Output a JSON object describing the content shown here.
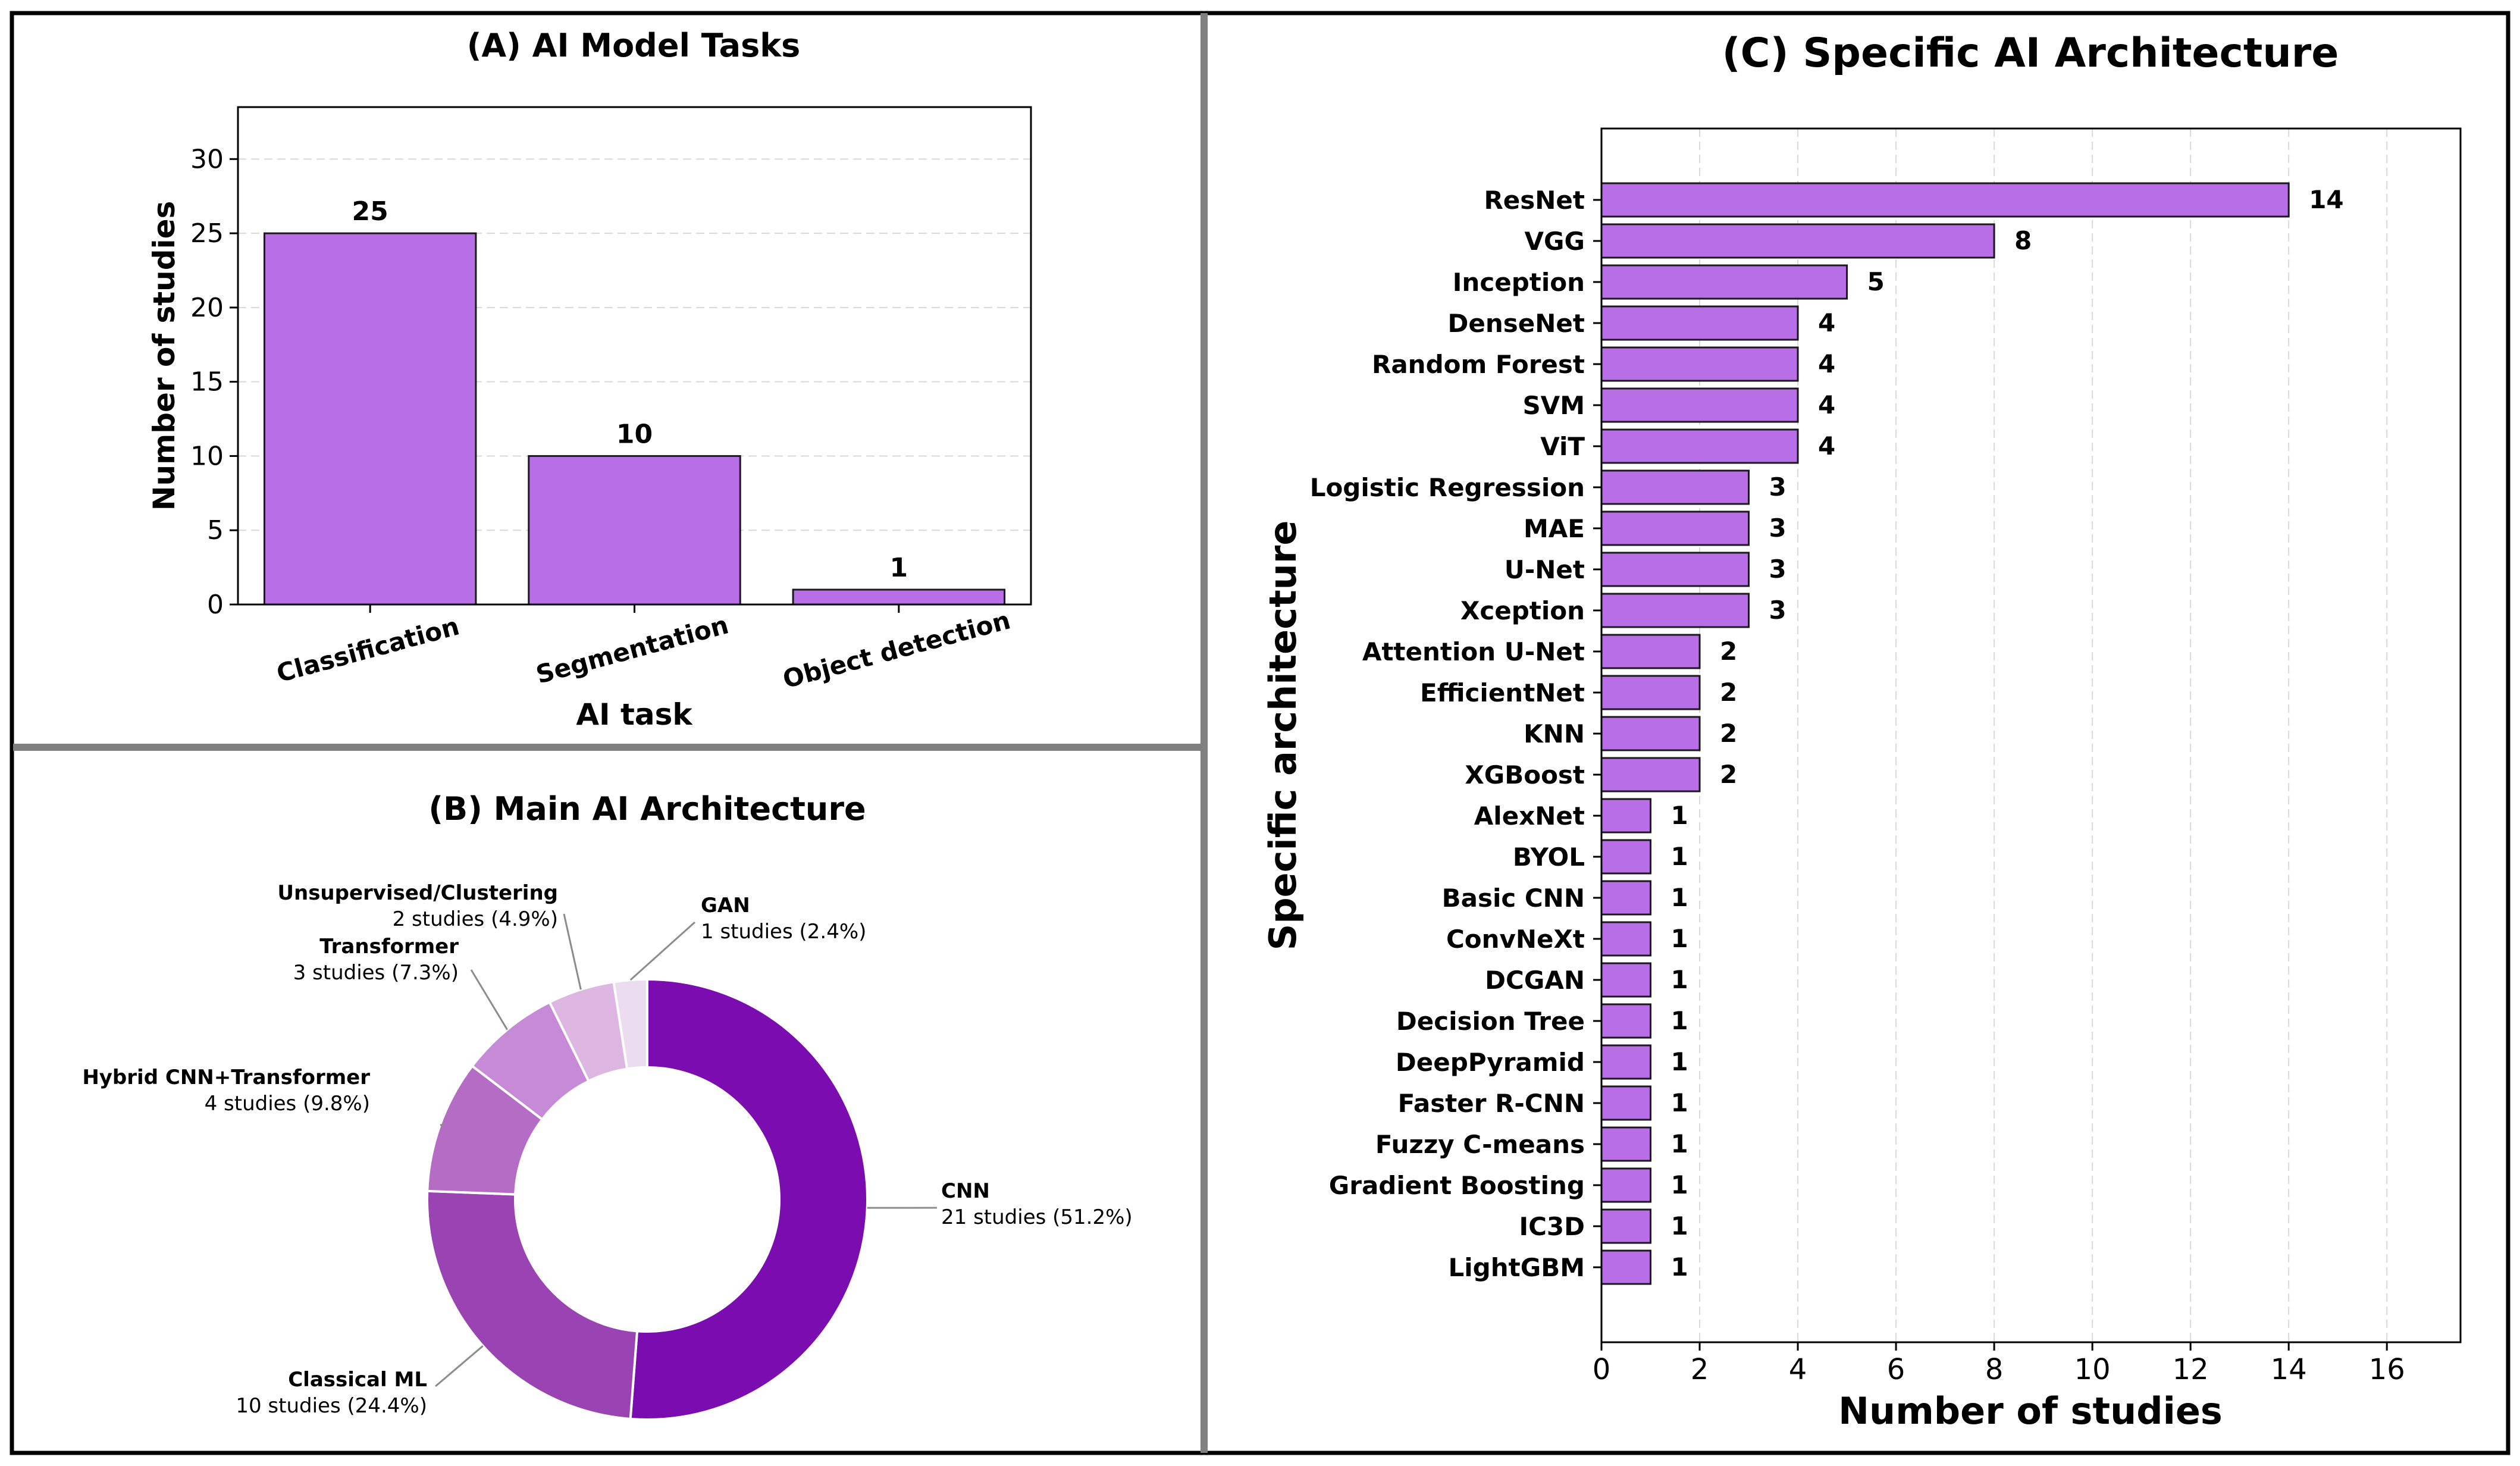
{
  "colors": {
    "bar": "#b76ee6",
    "bar_edge": "#1a1a1a",
    "panel_border": "#808080",
    "outer_border": "#000000",
    "grid": "#d9d9d9",
    "pie": [
      "#7a0cb0",
      "#9a43b3",
      "#b46cc5",
      "#c78ad6",
      "#ddb6e2",
      "#ecdcef"
    ]
  },
  "chart_data": [
    {
      "type": "bar",
      "title": "(A) AI Model Tasks",
      "xlabel": "AI task",
      "ylabel": "Number of studies",
      "categories": [
        "Classification",
        "Segmentation",
        "Object detection"
      ],
      "values": [
        25,
        10,
        1
      ],
      "data_labels": [
        "25",
        "10",
        "1"
      ],
      "ylim": [
        0,
        33.5
      ],
      "yticks": [
        0,
        5,
        10,
        15,
        20,
        25,
        30
      ],
      "ytick_labels": [
        "0",
        "5",
        "10",
        "15",
        "20",
        "25",
        "30"
      ],
      "grid": "horizontal dashed"
    },
    {
      "type": "pie",
      "title": "(B) Main AI Architecture",
      "donut": true,
      "slices": [
        {
          "name": "CNN",
          "value": 21,
          "detail": "21 studies (51.2%)"
        },
        {
          "name": "Classical ML",
          "value": 10,
          "detail": "10 studies (24.4%)"
        },
        {
          "name": "Hybrid CNN+Transformer",
          "value": 4,
          "detail": "4 studies (9.8%)"
        },
        {
          "name": "Transformer",
          "value": 3,
          "detail": "3 studies (7.3%)"
        },
        {
          "name": "Unsupervised/Clustering",
          "value": 2,
          "detail": "2 studies (4.9%)"
        },
        {
          "name": "GAN",
          "value": 1,
          "detail": "1 studies (2.4%)"
        }
      ]
    },
    {
      "type": "bar",
      "orientation": "horizontal",
      "title": "(C) Specific AI Architecture",
      "xlabel": "Number of studies",
      "ylabel": "Specific architecture",
      "categories": [
        "ResNet",
        "VGG",
        "Inception",
        "DenseNet",
        "Random Forest",
        "SVM",
        "ViT",
        "Logistic Regression",
        "MAE",
        "U-Net",
        "Xception",
        "Attention U-Net",
        "EfficientNet",
        "KNN",
        "XGBoost",
        "AlexNet",
        "BYOL",
        "Basic CNN",
        "ConvNeXt",
        "DCGAN",
        "Decision Tree",
        "DeepPyramid",
        "Faster R-CNN",
        "Fuzzy C-means",
        "Gradient Boosting",
        "IC3D",
        "LightGBM"
      ],
      "values": [
        14,
        8,
        5,
        4,
        4,
        4,
        4,
        3,
        3,
        3,
        3,
        2,
        2,
        2,
        2,
        1,
        1,
        1,
        1,
        1,
        1,
        1,
        1,
        1,
        1,
        1,
        1
      ],
      "data_labels": [
        "14",
        "8",
        "5",
        "4",
        "4",
        "4",
        "4",
        "3",
        "3",
        "3",
        "3",
        "2",
        "2",
        "2",
        "2",
        "1",
        "1",
        "1",
        "1",
        "1",
        "1",
        "1",
        "1",
        "1",
        "1",
        "1",
        "1"
      ],
      "xlim": [
        0,
        17.5
      ],
      "xticks": [
        0,
        2,
        4,
        6,
        8,
        10,
        12,
        14,
        16
      ],
      "xtick_labels": [
        "0",
        "2",
        "4",
        "6",
        "8",
        "10",
        "12",
        "14",
        "16"
      ],
      "grid": "vertical dashed"
    }
  ]
}
